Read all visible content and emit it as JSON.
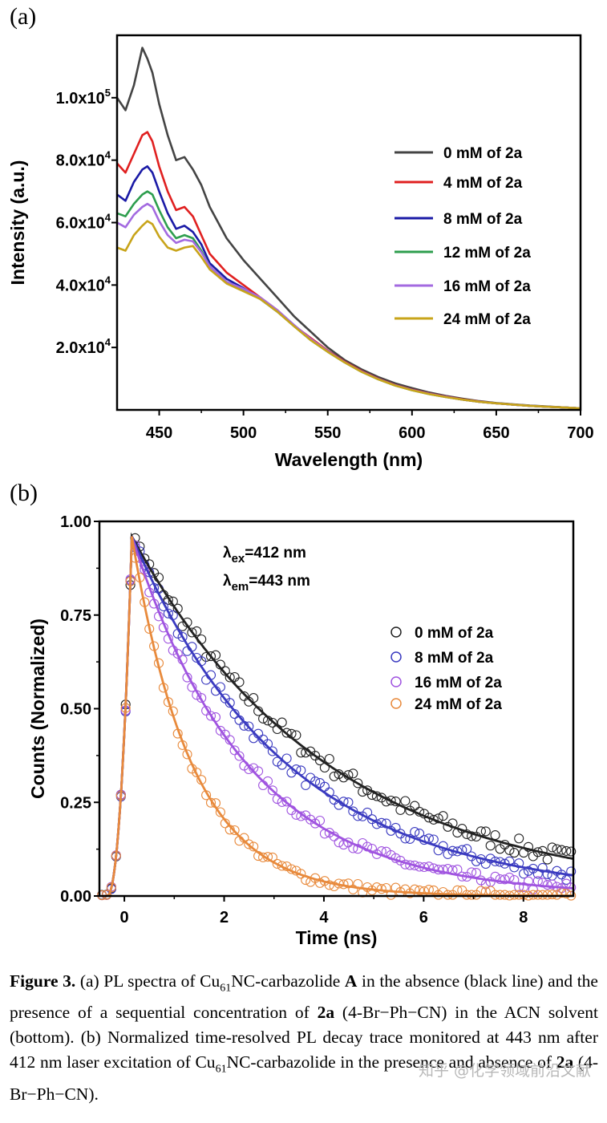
{
  "panel_a_label": "(a)",
  "panel_b_label": "(b)",
  "chart_data": [
    {
      "type": "line",
      "xlabel": "Wavelength (nm)",
      "ylabel": "Intensity (a.u.)",
      "xlim": [
        425,
        700
      ],
      "ylim": [
        0,
        120000
      ],
      "xticks": [
        450,
        500,
        550,
        600,
        650,
        700
      ],
      "xtick_labels": [
        "450",
        "500",
        "550",
        "600",
        "650",
        "700"
      ],
      "yticks": [
        20000,
        40000,
        60000,
        80000,
        100000
      ],
      "ytick_base": [
        "2.0x10",
        "4.0x10",
        "6.0x10",
        "8.0x10",
        "1.0x10"
      ],
      "ytick_exp": [
        "4",
        "4",
        "4",
        "4",
        "5"
      ],
      "legend_position": "right",
      "series": [
        {
          "name": "0 mM of 2a",
          "color": "#444444",
          "x": [
            425,
            430,
            435,
            440,
            443,
            446,
            450,
            455,
            460,
            465,
            470,
            475,
            480,
            490,
            500,
            510,
            520,
            530,
            540,
            550,
            560,
            570,
            580,
            590,
            600,
            610,
            620,
            630,
            640,
            650,
            660,
            670,
            680,
            690,
            700
          ],
          "y": [
            100000,
            96000,
            104000,
            116000,
            112500,
            108000,
            98000,
            88000,
            80000,
            81000,
            77000,
            72000,
            65000,
            55000,
            48000,
            42000,
            36000,
            30000,
            25000,
            20000,
            16000,
            13000,
            10500,
            8500,
            7000,
            5600,
            4500,
            3600,
            2800,
            2200,
            1800,
            1400,
            1100,
            800,
            500
          ]
        },
        {
          "name": "4 mM of 2a",
          "color": "#e02020",
          "x": [
            425,
            430,
            435,
            440,
            443,
            446,
            450,
            455,
            460,
            465,
            470,
            475,
            480,
            490,
            500,
            510,
            520,
            530,
            540,
            550,
            560,
            570,
            580,
            590,
            600,
            610,
            620,
            630,
            640,
            650,
            660,
            670,
            680,
            690,
            700
          ],
          "y": [
            79000,
            76000,
            82000,
            88000,
            89000,
            86000,
            78000,
            70000,
            64000,
            65000,
            62000,
            56000,
            50000,
            44000,
            40000,
            36000,
            32000,
            27000,
            23000,
            19000,
            15500,
            12500,
            10000,
            8000,
            6500,
            5300,
            4300,
            3400,
            2700,
            2100,
            1700,
            1300,
            1000,
            800,
            500
          ]
        },
        {
          "name": "8 mM of 2a",
          "color": "#1a1aa6",
          "x": [
            425,
            430,
            435,
            440,
            443,
            446,
            450,
            455,
            460,
            465,
            470,
            475,
            480,
            490,
            500,
            510,
            520,
            530,
            540,
            550,
            560,
            570,
            580,
            590,
            600,
            610,
            620,
            630,
            640,
            650,
            660,
            670,
            680,
            690,
            700
          ],
          "y": [
            69000,
            67000,
            73000,
            77000,
            78000,
            76000,
            70000,
            63000,
            58000,
            59000,
            57000,
            53000,
            47000,
            42000,
            39000,
            35500,
            31500,
            27000,
            22500,
            18800,
            15300,
            12300,
            9900,
            7900,
            6400,
            5200,
            4200,
            3300,
            2600,
            2100,
            1700,
            1300,
            1000,
            800,
            500
          ]
        },
        {
          "name": "12 mM of 2a",
          "color": "#2e9e4e",
          "x": [
            425,
            430,
            435,
            440,
            443,
            446,
            450,
            455,
            460,
            465,
            470,
            475,
            480,
            490,
            500,
            510,
            520,
            530,
            540,
            550,
            560,
            570,
            580,
            590,
            600,
            610,
            620,
            630,
            640,
            650,
            660,
            670,
            680,
            690,
            700
          ],
          "y": [
            63000,
            62000,
            66000,
            69000,
            70000,
            69000,
            64000,
            58500,
            55000,
            56000,
            55000,
            51000,
            46000,
            41000,
            38500,
            35500,
            31500,
            26800,
            22300,
            18600,
            15200,
            12200,
            9800,
            7800,
            6300,
            5100,
            4100,
            3300,
            2600,
            2100,
            1700,
            1300,
            1000,
            800,
            500
          ]
        },
        {
          "name": "16 mM of 2a",
          "color": "#a36ae0",
          "x": [
            425,
            430,
            435,
            440,
            443,
            446,
            450,
            455,
            460,
            465,
            470,
            475,
            480,
            490,
            500,
            510,
            520,
            530,
            540,
            550,
            560,
            570,
            580,
            590,
            600,
            610,
            620,
            630,
            640,
            650,
            660,
            670,
            680,
            690,
            700
          ],
          "y": [
            60000,
            58500,
            62500,
            65000,
            66000,
            65000,
            60500,
            56000,
            53500,
            54500,
            54000,
            50500,
            46000,
            41000,
            38800,
            36000,
            32000,
            27200,
            22700,
            18800,
            15300,
            12300,
            9900,
            7900,
            6400,
            5200,
            4200,
            3300,
            2600,
            2100,
            1700,
            1300,
            1000,
            800,
            500
          ]
        },
        {
          "name": "24 mM of 2a",
          "color": "#c8a41a",
          "x": [
            425,
            430,
            435,
            440,
            443,
            446,
            450,
            455,
            460,
            465,
            470,
            475,
            480,
            490,
            500,
            510,
            520,
            530,
            540,
            550,
            560,
            570,
            580,
            590,
            600,
            610,
            620,
            630,
            640,
            650,
            660,
            670,
            680,
            690,
            700
          ],
          "y": [
            52000,
            51000,
            56000,
            59000,
            60500,
            59500,
            55500,
            52000,
            51000,
            52000,
            52500,
            49000,
            45000,
            40500,
            38000,
            35500,
            31500,
            26800,
            22300,
            18600,
            15200,
            12200,
            9800,
            7800,
            6300,
            5100,
            4100,
            3300,
            2600,
            2100,
            1700,
            1300,
            1000,
            800,
            500
          ]
        }
      ]
    },
    {
      "type": "scatter",
      "xlabel": "Time (ns)",
      "ylabel": "Counts (Normalized)",
      "xlim": [
        -0.5,
        9
      ],
      "ylim": [
        0,
        1
      ],
      "xticks": [
        0,
        2,
        4,
        6,
        8
      ],
      "xtick_labels": [
        "0",
        "2",
        "4",
        "6",
        "8"
      ],
      "yticks": [
        0,
        0.25,
        0.5,
        0.75,
        1
      ],
      "ytick_labels": [
        "0.00",
        "0.25",
        "0.50",
        "0.75",
        "1.00"
      ],
      "annotations": [
        {
          "main": "λ",
          "sub": "ex",
          "rest": "=412 nm"
        },
        {
          "main": "λ",
          "sub": "em",
          "rest": "=443 nm"
        }
      ],
      "legend_position": "top-right",
      "peak_time": 0.15,
      "series": [
        {
          "name": "0 mM of 2a",
          "color": "#222222",
          "marker": "open-circle",
          "fit": "exp_decay",
          "fit_amplitude": 0.96,
          "tau_ns": 3.9
        },
        {
          "name": "8 mM of 2a",
          "color": "#3a3ac0",
          "marker": "open-circle",
          "fit": "exp_decay",
          "fit_amplitude": 0.96,
          "tau_ns": 3.1
        },
        {
          "name": "16 mM of 2a",
          "color": "#a054e0",
          "marker": "open-circle",
          "fit": "exp_decay",
          "fit_amplitude": 0.96,
          "tau_ns": 2.3
        },
        {
          "name": "24 mM of 2a",
          "color": "#e88a3c",
          "marker": "open-circle",
          "fit": "exp_decay",
          "fit_amplitude": 0.96,
          "tau_ns": 1.2
        }
      ]
    }
  ],
  "caption": {
    "lead": "Figure 3.",
    "p1": " (a) PL spectra of Cu",
    "sub1": "61",
    "p2": "NC-carbazolide ",
    "bold_a": "A",
    "p3": " in the absence (black line) and the presence of a sequential concentration of ",
    "bold_2a_1": "2a",
    "p4": " (4-Br−Ph−CN) in the ACN solvent (bottom). (b) Normalized time-resolved PL decay trace monitored at 443 nm after 412 nm laser excitation of Cu",
    "sub2": "61",
    "p5": "NC-carbazolide in the presence and absence of ",
    "bold_2a_2": "2a",
    "p6": " (4-Br−Ph−CN)."
  },
  "watermark": "知乎 @化学领域前沿文献"
}
